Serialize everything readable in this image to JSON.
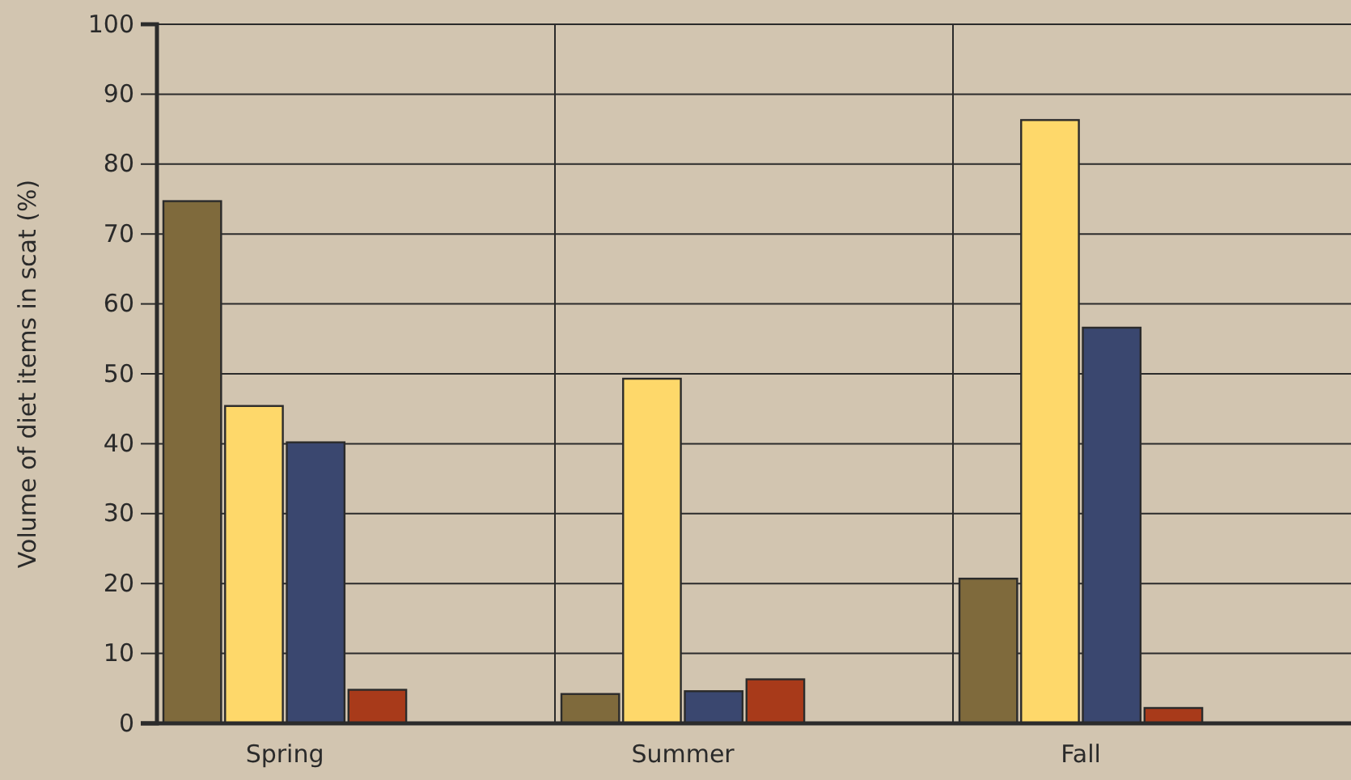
{
  "chart_data": {
    "type": "bar",
    "ylabel": "Volume of diet items in scat (%)",
    "categories": [
      "Spring",
      "Summer",
      "Fall"
    ],
    "series": [
      {
        "color": "#7f6a3c",
        "values": [
          74.7,
          4.2,
          20.7
        ]
      },
      {
        "color": "#fed86a",
        "values": [
          45.4,
          49.3,
          86.3
        ]
      },
      {
        "color": "#3a476f",
        "values": [
          40.2,
          4.6,
          56.6
        ]
      },
      {
        "color": "#a83a1a",
        "values": [
          4.8,
          6.3,
          2.2
        ]
      }
    ],
    "ylim": [
      0,
      100
    ],
    "yticks": [
      0,
      10,
      20,
      30,
      40,
      50,
      60,
      70,
      80,
      90,
      100
    ],
    "grid": true,
    "legend": false
  }
}
